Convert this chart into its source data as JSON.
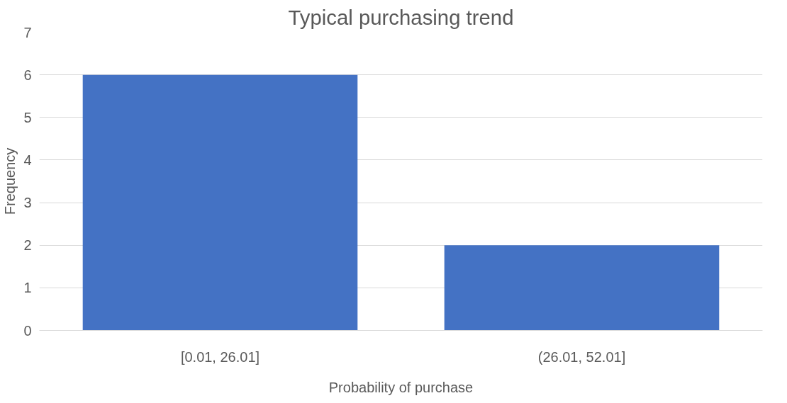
{
  "chart_data": {
    "type": "bar",
    "title": "Typical purchasing trend",
    "xlabel": "Probability of purchase",
    "ylabel": "Frequency",
    "categories": [
      "[0.01, 26.01]",
      "(26.01, 52.01]"
    ],
    "values": [
      6,
      2
    ],
    "color": "#4472c4",
    "ylim": [
      0,
      7
    ],
    "yticks": [
      0,
      1,
      2,
      3,
      4,
      5,
      6,
      7
    ],
    "grid": "y"
  }
}
